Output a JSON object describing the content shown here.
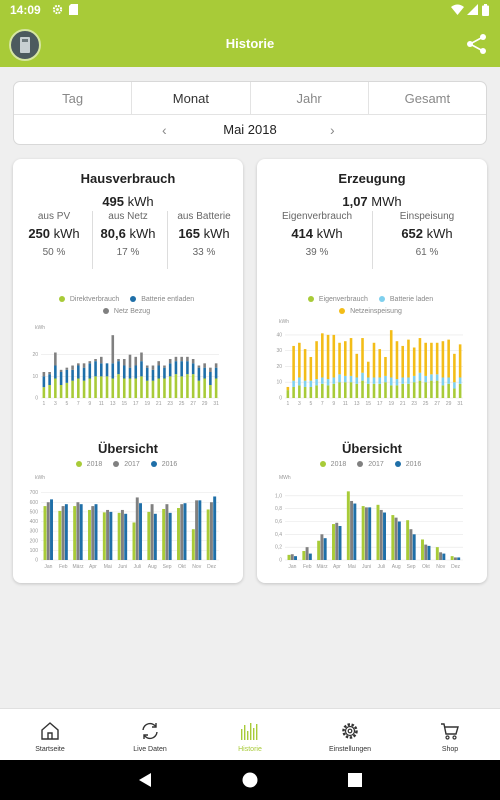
{
  "status_bar": {
    "time": "14:09"
  },
  "app_bar": {
    "title": "Historie"
  },
  "tabs": [
    {
      "label": "Tag"
    },
    {
      "label": "Monat"
    },
    {
      "label": "Jahr"
    },
    {
      "label": "Gesamt"
    }
  ],
  "period": {
    "label": "Mai 2018",
    "prev_icon": "chevron-left-icon",
    "next_icon": "chevron-right-icon"
  },
  "consumption": {
    "title": "Hausverbrauch",
    "total_value": "495",
    "total_unit": "kWh",
    "columns": [
      {
        "label": "aus PV",
        "value": "250",
        "unit": "kWh",
        "percent": "50 %"
      },
      {
        "label": "aus Netz",
        "value": "80,6",
        "unit": "kWh",
        "percent": "17 %"
      },
      {
        "label": "aus Batterie",
        "value": "165",
        "unit": "kWh",
        "percent": "33 %"
      }
    ],
    "legend": [
      "Direktverbrauch",
      "Batterie entladen",
      "Netz Bezug"
    ],
    "overview_title": "Übersicht",
    "overview_legend": [
      "2018",
      "2017",
      "2016"
    ]
  },
  "production": {
    "title": "Erzeugung",
    "total_value": "1,07",
    "total_unit": "MWh",
    "columns": [
      {
        "label": "Eigenverbrauch",
        "value": "414",
        "unit": "kWh",
        "percent": "39 %"
      },
      {
        "label": "Einspeisung",
        "value": "652",
        "unit": "kWh",
        "percent": "61 %"
      }
    ],
    "legend": [
      "Eigenverbrauch",
      "Batterie laden",
      "Netzeinspeisung"
    ],
    "overview_title": "Übersicht",
    "overview_legend": [
      "2018",
      "2017",
      "2016"
    ]
  },
  "colors": {
    "accent": "#a8cb38",
    "green": "#a8cb38",
    "blue": "#1f6fa8",
    "lightblue": "#7fd0ee",
    "gray": "#808080",
    "yellow": "#f3bd18"
  },
  "bottom_nav": [
    {
      "label": "Startseite",
      "icon": "home-icon"
    },
    {
      "label": "Live Daten",
      "icon": "refresh-icon"
    },
    {
      "label": "Historie",
      "icon": "history-bars-icon",
      "active": true
    },
    {
      "label": "Einstellungen",
      "icon": "gear-icon"
    },
    {
      "label": "Shop",
      "icon": "cart-icon"
    }
  ],
  "chart_data": [
    {
      "type": "bar",
      "stacked": true,
      "title": "",
      "unit": "kWh",
      "ylim": [
        0,
        30
      ],
      "y_ticks": [
        0,
        10,
        20
      ],
      "x_tick_labels": [
        "1",
        "3",
        "5",
        "7",
        "9",
        "11",
        "13",
        "15",
        "17",
        "19",
        "21",
        "23",
        "25",
        "27",
        "29",
        "31"
      ],
      "categories": [
        1,
        2,
        3,
        4,
        5,
        6,
        7,
        8,
        9,
        10,
        11,
        12,
        13,
        14,
        15,
        16,
        17,
        18,
        19,
        20,
        21,
        22,
        23,
        24,
        25,
        26,
        27,
        28,
        29,
        30,
        31
      ],
      "series": [
        {
          "name": "Direktverbrauch",
          "values": [
            5,
            6,
            9,
            6,
            7,
            8,
            9,
            8,
            9,
            10,
            10,
            10,
            9,
            11,
            9,
            9,
            9,
            10,
            8,
            8,
            9,
            9,
            10,
            11,
            10,
            11,
            11,
            8,
            9,
            6,
            9
          ]
        },
        {
          "name": "Batterie entladen",
          "values": [
            5,
            5,
            6,
            6,
            6,
            5,
            6,
            6,
            7,
            7,
            6,
            6,
            7,
            6,
            6,
            5,
            6,
            7,
            6,
            5,
            6,
            5,
            6,
            6,
            7,
            6,
            5,
            6,
            5,
            6,
            5
          ]
        },
        {
          "name": "Netz Bezug",
          "values": [
            2,
            1,
            6,
            1,
            1,
            2,
            1,
            2,
            1,
            1,
            3,
            0,
            13,
            1,
            3,
            6,
            4,
            4,
            1,
            2,
            2,
            1,
            2,
            2,
            2,
            2,
            2,
            1,
            2,
            2,
            2
          ]
        }
      ]
    },
    {
      "type": "bar",
      "stacked": true,
      "title": "",
      "unit": "kWh",
      "ylim": [
        0,
        45
      ],
      "y_ticks": [
        0,
        10,
        20,
        30,
        40
      ],
      "x_tick_labels": [
        "1",
        "3",
        "5",
        "7",
        "9",
        "11",
        "13",
        "15",
        "17",
        "19",
        "21",
        "23",
        "25",
        "27",
        "29",
        "31"
      ],
      "categories": [
        1,
        2,
        3,
        4,
        5,
        6,
        7,
        8,
        9,
        10,
        11,
        12,
        13,
        14,
        15,
        16,
        17,
        18,
        19,
        20,
        21,
        22,
        23,
        24,
        25,
        26,
        27,
        28,
        29,
        30,
        31
      ],
      "series": [
        {
          "name": "Eigenverbrauch",
          "values": [
            5,
            7,
            8,
            7,
            7,
            8,
            9,
            8,
            9,
            10,
            10,
            10,
            9,
            11,
            9,
            9,
            9,
            10,
            8,
            8,
            9,
            9,
            10,
            11,
            10,
            11,
            11,
            8,
            9,
            6,
            9
          ]
        },
        {
          "name": "Batterie laden",
          "values": [
            0,
            4,
            5,
            4,
            4,
            4,
            4,
            4,
            4,
            5,
            4,
            4,
            4,
            5,
            4,
            4,
            4,
            4,
            5,
            4,
            4,
            4,
            4,
            5,
            4,
            4,
            4,
            5,
            4,
            4,
            4
          ]
        },
        {
          "name": "Netzeinspeisung",
          "values": [
            2,
            22,
            22,
            20,
            15,
            24,
            28,
            28,
            27,
            20,
            22,
            24,
            15,
            22,
            10,
            22,
            18,
            12,
            30,
            24,
            20,
            24,
            18,
            22,
            21,
            20,
            20,
            23,
            24,
            18,
            21
          ]
        }
      ]
    },
    {
      "type": "bar",
      "title": "Übersicht",
      "unit": "kWh",
      "ylim": [
        0,
        800
      ],
      "y_ticks": [
        0,
        100,
        200,
        300,
        400,
        500,
        600,
        700
      ],
      "categories": [
        "Jan",
        "Feb",
        "März",
        "Apr",
        "Mai",
        "Juni",
        "Juli",
        "Aug",
        "Sep",
        "Okt",
        "Nov",
        "Dez"
      ],
      "series": [
        {
          "name": "2018",
          "values": [
            560,
            510,
            560,
            520,
            495,
            490,
            390,
            500,
            530,
            540,
            320,
            525
          ]
        },
        {
          "name": "2017",
          "values": [
            600,
            560,
            600,
            560,
            520,
            520,
            650,
            580,
            580,
            580,
            620,
            600
          ]
        },
        {
          "name": "2016",
          "values": [
            630,
            580,
            580,
            580,
            500,
            480,
            590,
            480,
            490,
            590,
            620,
            660
          ]
        }
      ]
    },
    {
      "type": "bar",
      "title": "Übersicht",
      "unit": "MWh",
      "ylim": [
        0,
        1.2
      ],
      "y_ticks": [
        0,
        0.2,
        0.4,
        0.6,
        0.8,
        1.0
      ],
      "y_tick_labels": [
        "0",
        "0,2",
        "0,4",
        "0,6",
        "0,8",
        "1,0"
      ],
      "categories": [
        "Jan",
        "Feb",
        "März",
        "Apr",
        "Mai",
        "Juni",
        "Juli",
        "Aug",
        "Sep",
        "Okt",
        "Nov",
        "Dez"
      ],
      "series": [
        {
          "name": "2018",
          "values": [
            0.08,
            0.14,
            0.3,
            0.56,
            1.07,
            0.84,
            0.86,
            0.7,
            0.62,
            0.32,
            0.2,
            0.06
          ]
        },
        {
          "name": "2017",
          "values": [
            0.09,
            0.2,
            0.4,
            0.58,
            0.92,
            0.82,
            0.78,
            0.66,
            0.48,
            0.24,
            0.12,
            0.04
          ]
        },
        {
          "name": "2016",
          "values": [
            0.06,
            0.1,
            0.34,
            0.53,
            0.88,
            0.82,
            0.74,
            0.6,
            0.4,
            0.22,
            0.1,
            0.04
          ]
        }
      ]
    }
  ]
}
